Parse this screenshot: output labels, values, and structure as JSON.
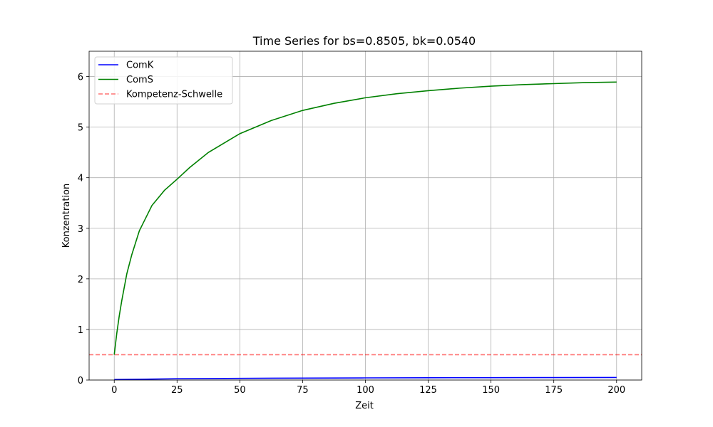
{
  "chart_data": {
    "type": "line",
    "title": "Time Series for bs=0.8505, bk=0.0540",
    "xlabel": "Zeit",
    "ylabel": "Konzentration",
    "xlim": [
      -10,
      210
    ],
    "ylim": [
      0,
      6.5
    ],
    "xticks": [
      0,
      25,
      50,
      75,
      100,
      125,
      150,
      175,
      200
    ],
    "yticks": [
      0,
      1,
      2,
      3,
      4,
      5,
      6
    ],
    "grid": true,
    "legend_position": "top-left",
    "series": [
      {
        "name": "ComK",
        "color": "#0000ff",
        "style": "solid",
        "x": [
          0,
          10,
          25,
          50,
          75,
          100,
          125,
          150,
          175,
          200
        ],
        "y": [
          0.01,
          0.015,
          0.025,
          0.033,
          0.038,
          0.042,
          0.045,
          0.047,
          0.049,
          0.05
        ]
      },
      {
        "name": "ComS",
        "color": "#008000",
        "style": "solid",
        "x": [
          0,
          1,
          2,
          3,
          5,
          7,
          10,
          12.5,
          15,
          20,
          25,
          30,
          37.5,
          50,
          62.5,
          75,
          87.5,
          100,
          112.5,
          125,
          137.5,
          150,
          162.5,
          175,
          187.5,
          200
        ],
        "y": [
          0.5,
          0.92,
          1.27,
          1.57,
          2.1,
          2.48,
          2.95,
          3.2,
          3.45,
          3.75,
          3.97,
          4.2,
          4.5,
          4.87,
          5.13,
          5.33,
          5.47,
          5.58,
          5.66,
          5.72,
          5.77,
          5.81,
          5.84,
          5.86,
          5.88,
          5.89
        ]
      },
      {
        "name": "Kompetenz-Schwelle",
        "color": "#ff0000",
        "style": "dashed",
        "x": [
          -10,
          210
        ],
        "y": [
          0.5,
          0.5
        ]
      }
    ]
  }
}
